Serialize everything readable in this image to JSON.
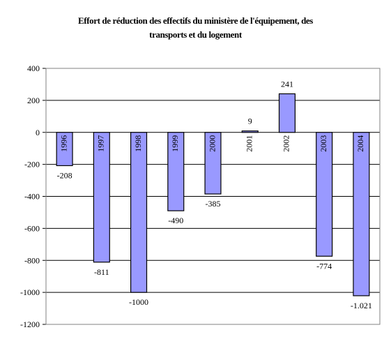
{
  "chart_data": {
    "type": "bar",
    "title_lines": [
      "Effort de réduction des effectifs du ministère de l'équipement, des",
      "transports et du logement"
    ],
    "categories": [
      "1996",
      "1997",
      "1998",
      "1999",
      "2000",
      "2001",
      "2002",
      "2003",
      "2004"
    ],
    "values": [
      -208,
      -811,
      -1000,
      -490,
      -385,
      9,
      241,
      -774,
      -1021
    ],
    "data_labels": [
      "-208",
      "-811",
      "-1000",
      "-490",
      "-385",
      "9",
      "241",
      "-774",
      "-1.021"
    ],
    "ylim": [
      -1200,
      400
    ],
    "yticks": [
      "400",
      "200",
      "0",
      "-200",
      "-400",
      "-600",
      "-800",
      "-1000",
      "-1200"
    ],
    "xlabel": "",
    "ylabel": "",
    "grid": true,
    "legend": "none",
    "colors": {
      "bar_fill": "#9999ff",
      "bar_stroke": "#000000",
      "grid": "#000000",
      "plot_background": "#ffffff"
    }
  }
}
